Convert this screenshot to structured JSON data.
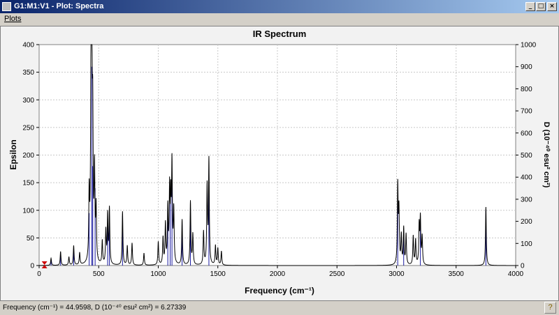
{
  "window": {
    "title": "G1:M1:V1 - Plot: Spectra"
  },
  "window_buttons": {
    "minimize": "_",
    "maximize": "□",
    "close": "×"
  },
  "menu": {
    "plots": "Plots"
  },
  "status": {
    "text": "Frequency (cm⁻¹) = 44.9598, D (10⁻⁴⁰ esu² cm²) = 6.27339",
    "help_icon": "?"
  },
  "chart_data": {
    "type": "line",
    "title": "IR Spectrum",
    "xlabel": "Frequency (cm⁻¹)",
    "ylabel": "Epsilon",
    "y2label": "D (10⁻⁴⁰ esu² cm²)",
    "xlim": [
      0,
      4000
    ],
    "ylim": [
      0,
      400
    ],
    "y2lim": [
      0,
      1000
    ],
    "xticks": [
      0,
      500,
      1000,
      1500,
      2000,
      2500,
      3000,
      3500,
      4000
    ],
    "yticks": [
      0,
      50,
      100,
      150,
      200,
      250,
      300,
      350,
      400
    ],
    "y2ticks": [
      0,
      100,
      200,
      300,
      400,
      500,
      600,
      700,
      800,
      900,
      1000
    ],
    "grid": true,
    "marker": {
      "x": 45,
      "label": "cursor"
    },
    "spectrum_peaks": [
      [
        100,
        13
      ],
      [
        180,
        25
      ],
      [
        250,
        15
      ],
      [
        290,
        35
      ],
      [
        340,
        22
      ],
      [
        420,
        120
      ],
      [
        435,
        290
      ],
      [
        442,
        385
      ],
      [
        450,
        230
      ],
      [
        465,
        160
      ],
      [
        478,
        95
      ],
      [
        530,
        42
      ],
      [
        560,
        60
      ],
      [
        575,
        88
      ],
      [
        590,
        100
      ],
      [
        700,
        97
      ],
      [
        740,
        35
      ],
      [
        780,
        40
      ],
      [
        880,
        22
      ],
      [
        1000,
        42
      ],
      [
        1040,
        48
      ],
      [
        1060,
        72
      ],
      [
        1080,
        100
      ],
      [
        1095,
        130
      ],
      [
        1105,
        108
      ],
      [
        1115,
        175
      ],
      [
        1130,
        95
      ],
      [
        1200,
        82
      ],
      [
        1270,
        115
      ],
      [
        1290,
        55
      ],
      [
        1380,
        60
      ],
      [
        1410,
        140
      ],
      [
        1425,
        188
      ],
      [
        1480,
        35
      ],
      [
        1500,
        30
      ],
      [
        1530,
        25
      ],
      [
        3010,
        142
      ],
      [
        3020,
        95
      ],
      [
        3040,
        52
      ],
      [
        3060,
        66
      ],
      [
        3080,
        55
      ],
      [
        3140,
        52
      ],
      [
        3160,
        45
      ],
      [
        3190,
        70
      ],
      [
        3200,
        82
      ],
      [
        3215,
        50
      ],
      [
        3750,
        106
      ]
    ],
    "stick_bars": [
      [
        100,
        12
      ],
      [
        180,
        22
      ],
      [
        290,
        30
      ],
      [
        420,
        95
      ],
      [
        442,
        360
      ],
      [
        450,
        180
      ],
      [
        470,
        140
      ],
      [
        575,
        80
      ],
      [
        590,
        92
      ],
      [
        700,
        90
      ],
      [
        1080,
        88
      ],
      [
        1100,
        115
      ],
      [
        1115,
        160
      ],
      [
        1200,
        75
      ],
      [
        1270,
        105
      ],
      [
        1425,
        175
      ],
      [
        3010,
        135
      ],
      [
        3060,
        60
      ],
      [
        3200,
        75
      ],
      [
        3750,
        100
      ]
    ]
  }
}
